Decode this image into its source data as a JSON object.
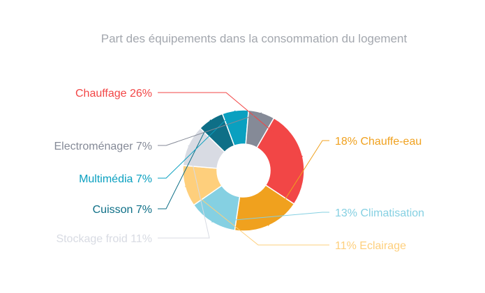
{
  "chart_data": {
    "type": "pie",
    "donut": true,
    "title": "Part des équipements dans la consommation du logement",
    "slices": [
      {
        "name": "Chauffage",
        "value": 26,
        "label": "Chauffage 26%",
        "color": "#f24646"
      },
      {
        "name": "Chauffe-eau",
        "value": 18,
        "label": "18% Chauffe-eau",
        "color": "#f0a11e"
      },
      {
        "name": "Climatisation",
        "value": 13,
        "label": "13% Climatisation",
        "color": "#85d0e2"
      },
      {
        "name": "Eclairage",
        "value": 11,
        "label": "11% Eclairage",
        "color": "#fecf7c"
      },
      {
        "name": "Stockage froid",
        "value": 11,
        "label": "Stockage froid 11%",
        "color": "#d8dbe3"
      },
      {
        "name": "Cuisson",
        "value": 7,
        "label": "Cuisson 7%",
        "color": "#0e6f87"
      },
      {
        "name": "Multimédia",
        "value": 7,
        "label": "Multimédia 7%",
        "color": "#0aa0c0"
      },
      {
        "name": "Electroménager",
        "value": 7,
        "label": "Electroménager 7%",
        "color": "#858a97"
      }
    ],
    "legend": "none"
  }
}
